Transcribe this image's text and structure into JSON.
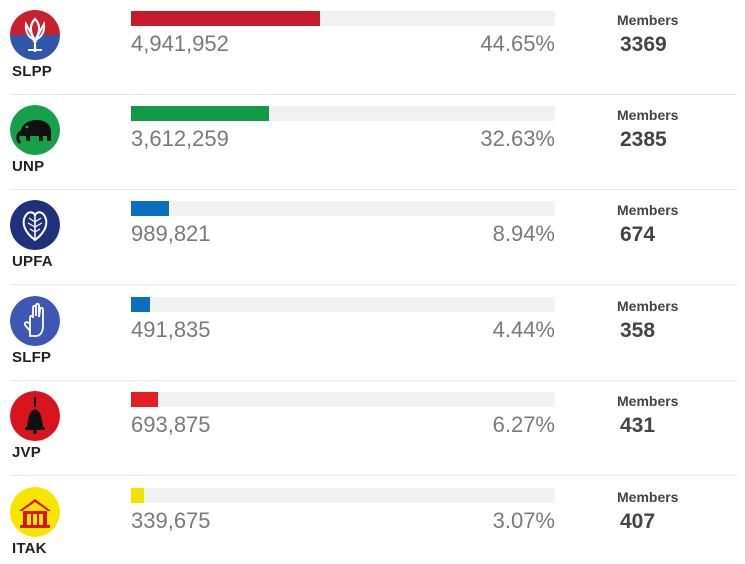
{
  "parties": [
    {
      "code": "SLPP",
      "votes": "4,941,952",
      "percent": "44.65%",
      "share": 44.65,
      "members_label": "Members",
      "members": "3369",
      "color": "#c41e2e",
      "icon": "lotus-bud-icon"
    },
    {
      "code": "UNP",
      "votes": "3,612,259",
      "percent": "32.63%",
      "share": 32.63,
      "members_label": "Members",
      "members": "2385",
      "color": "#129b45",
      "icon": "elephant-icon"
    },
    {
      "code": "UPFA",
      "votes": "989,821",
      "percent": "8.94%",
      "share": 8.94,
      "members_label": "Members",
      "members": "674",
      "color": "#0b6fbf",
      "icon": "betel-leaf-icon"
    },
    {
      "code": "SLFP",
      "votes": "491,835",
      "percent": "4.44%",
      "share": 4.44,
      "members_label": "Members",
      "members": "358",
      "color": "#0b6fbf",
      "icon": "raised-hand-icon"
    },
    {
      "code": "JVP",
      "votes": "693,875",
      "percent": "6.27%",
      "share": 6.27,
      "members_label": "Members",
      "members": "431",
      "color": "#e31e24",
      "icon": "bell-icon"
    },
    {
      "code": "ITAK",
      "votes": "339,675",
      "percent": "3.07%",
      "share": 3.07,
      "members_label": "Members",
      "members": "407",
      "color": "#f2e000",
      "icon": "house-icon"
    }
  ]
}
